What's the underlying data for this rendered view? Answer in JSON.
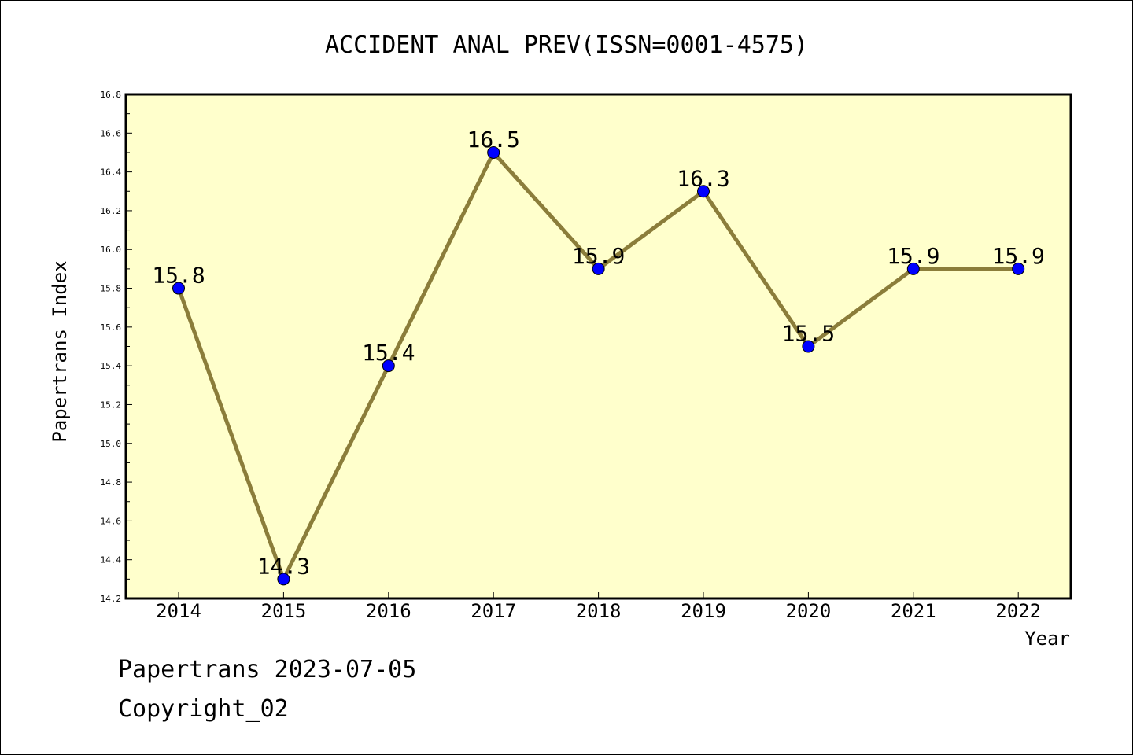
{
  "chart_data": {
    "type": "line",
    "title": "ACCIDENT ANAL PREV(ISSN=0001-4575)",
    "xlabel": "Year",
    "ylabel": "Papertrans Index",
    "categories": [
      "2014",
      "2015",
      "2016",
      "2017",
      "2018",
      "2019",
      "2020",
      "2021",
      "2022"
    ],
    "series": [
      {
        "values": [
          15.8,
          14.3,
          15.4,
          16.5,
          15.9,
          16.3,
          15.5,
          15.9,
          15.9
        ]
      }
    ],
    "data_labels": [
      "15.8",
      "14.3",
      "15.4",
      "16.5",
      "15.9",
      "16.3",
      "15.5",
      "15.9",
      "15.9"
    ],
    "ylim": [
      14.2,
      16.8
    ],
    "yticks": [
      "14.2",
      "14.4",
      "14.6",
      "14.8",
      "15.0",
      "15.2",
      "15.4",
      "15.6",
      "15.8",
      "16.0",
      "16.2",
      "16.4",
      "16.6",
      "16.8"
    ],
    "grid": false,
    "legend": "none",
    "colors": {
      "plot_background": "#ffffcc",
      "line": "#8b7d3a",
      "marker": "#0000ff"
    }
  },
  "footer": {
    "line1": "Papertrans 2023-07-05",
    "line2": "Copyright_02"
  }
}
